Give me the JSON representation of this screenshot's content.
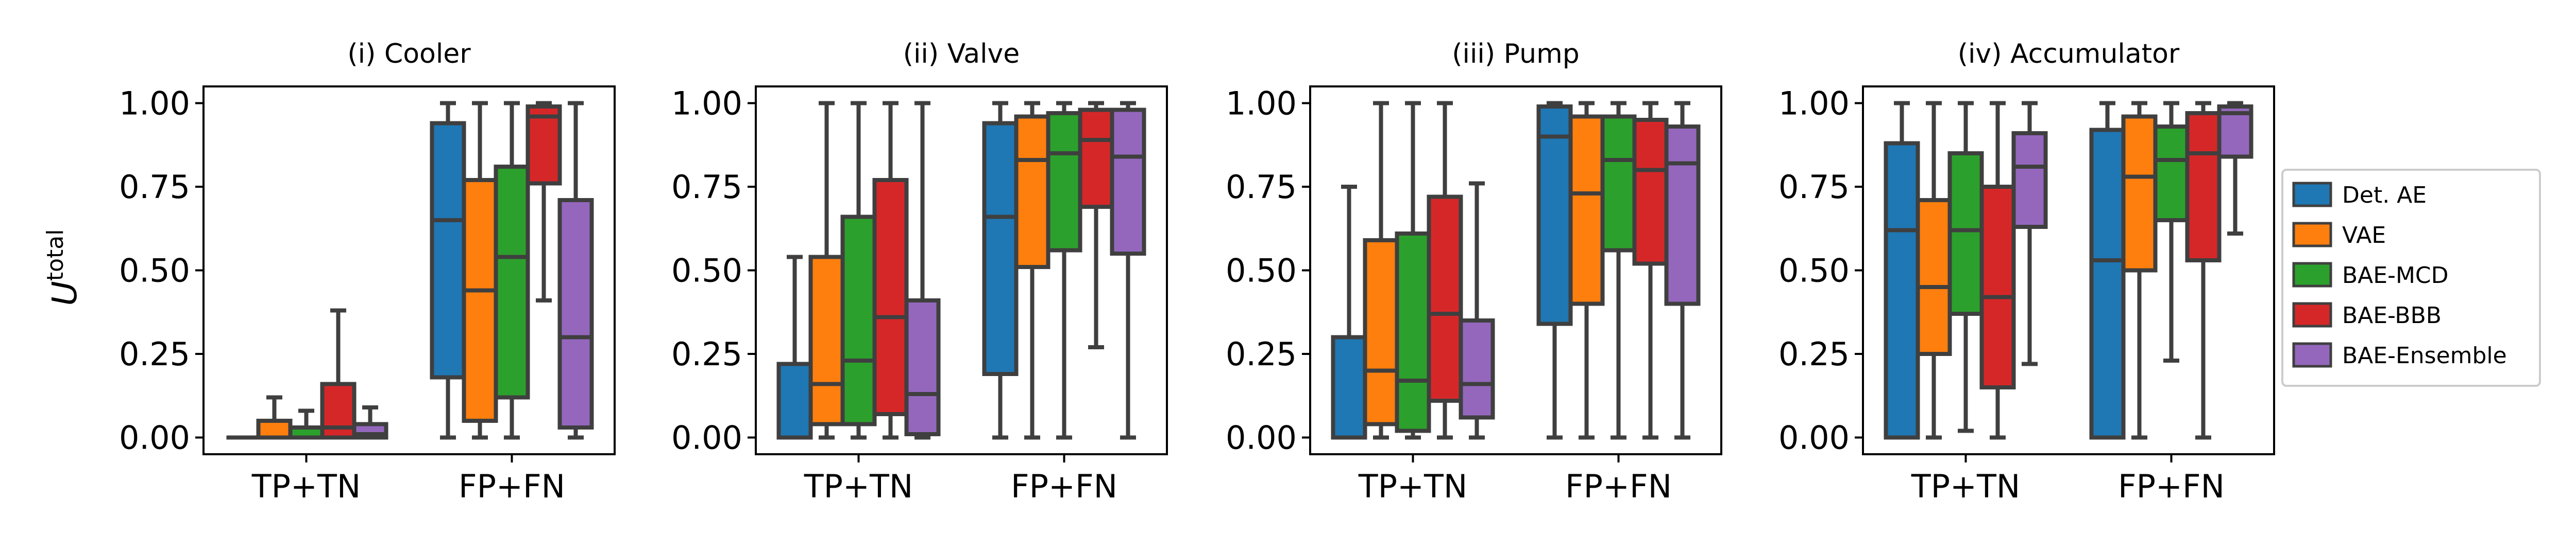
{
  "chart_data": {
    "type": "box",
    "ylabel_main": "U",
    "ylabel_sup": "total",
    "ylim": [
      -0.05,
      1.05
    ],
    "yticks": [
      0.0,
      0.25,
      0.5,
      0.75,
      1.0
    ],
    "ytick_labels": [
      "0.00",
      "0.25",
      "0.50",
      "0.75",
      "1.00"
    ],
    "categories": [
      "TP+TN",
      "FP+FN"
    ],
    "series": [
      {
        "name": "Det. AE",
        "color": "#1f77b4"
      },
      {
        "name": "VAE",
        "color": "#ff7f0e"
      },
      {
        "name": "BAE-MCD",
        "color": "#2ca02c"
      },
      {
        "name": "BAE-BBB",
        "color": "#d62728"
      },
      {
        "name": "BAE-Ensemble",
        "color": "#9467bd"
      }
    ],
    "legend_position": "right",
    "panels": [
      {
        "title": "(i) Cooler",
        "boxes": [
          [
            {
              "min": 0.0,
              "q1": 0.0,
              "median": 0.0,
              "q3": 0.0,
              "max": 0.0
            },
            {
              "min": 0.0,
              "q1": 0.0,
              "median": 0.0,
              "q3": 0.05,
              "max": 0.12
            },
            {
              "min": 0.0,
              "q1": 0.0,
              "median": 0.0,
              "q3": 0.03,
              "max": 0.08
            },
            {
              "min": 0.0,
              "q1": 0.0,
              "median": 0.03,
              "q3": 0.16,
              "max": 0.38
            },
            {
              "min": 0.0,
              "q1": 0.0,
              "median": 0.01,
              "q3": 0.04,
              "max": 0.09
            }
          ],
          [
            {
              "min": 0.0,
              "q1": 0.18,
              "median": 0.65,
              "q3": 0.94,
              "max": 1.0
            },
            {
              "min": 0.0,
              "q1": 0.05,
              "median": 0.44,
              "q3": 0.77,
              "max": 1.0
            },
            {
              "min": 0.0,
              "q1": 0.12,
              "median": 0.54,
              "q3": 0.81,
              "max": 1.0
            },
            {
              "min": 0.41,
              "q1": 0.76,
              "median": 0.96,
              "q3": 0.99,
              "max": 1.0
            },
            {
              "min": 0.0,
              "q1": 0.03,
              "median": 0.3,
              "q3": 0.71,
              "max": 1.0
            }
          ]
        ]
      },
      {
        "title": "(ii) Valve",
        "boxes": [
          [
            {
              "min": 0.0,
              "q1": 0.0,
              "median": 0.0,
              "q3": 0.22,
              "max": 0.54
            },
            {
              "min": 0.0,
              "q1": 0.04,
              "median": 0.16,
              "q3": 0.54,
              "max": 1.0
            },
            {
              "min": 0.0,
              "q1": 0.04,
              "median": 0.23,
              "q3": 0.66,
              "max": 1.0
            },
            {
              "min": 0.0,
              "q1": 0.07,
              "median": 0.36,
              "q3": 0.77,
              "max": 1.0
            },
            {
              "min": 0.0,
              "q1": 0.01,
              "median": 0.13,
              "q3": 0.41,
              "max": 1.0
            }
          ],
          [
            {
              "min": 0.0,
              "q1": 0.19,
              "median": 0.66,
              "q3": 0.94,
              "max": 1.0
            },
            {
              "min": 0.0,
              "q1": 0.51,
              "median": 0.83,
              "q3": 0.96,
              "max": 1.0
            },
            {
              "min": 0.0,
              "q1": 0.56,
              "median": 0.85,
              "q3": 0.97,
              "max": 1.0
            },
            {
              "min": 0.27,
              "q1": 0.69,
              "median": 0.89,
              "q3": 0.98,
              "max": 1.0
            },
            {
              "min": 0.0,
              "q1": 0.55,
              "median": 0.84,
              "q3": 0.98,
              "max": 1.0
            }
          ]
        ]
      },
      {
        "title": "(iii) Pump",
        "boxes": [
          [
            {
              "min": 0.0,
              "q1": 0.0,
              "median": 0.0,
              "q3": 0.3,
              "max": 0.75
            },
            {
              "min": 0.0,
              "q1": 0.04,
              "median": 0.2,
              "q3": 0.59,
              "max": 1.0
            },
            {
              "min": 0.0,
              "q1": 0.02,
              "median": 0.17,
              "q3": 0.61,
              "max": 1.0
            },
            {
              "min": 0.0,
              "q1": 0.11,
              "median": 0.37,
              "q3": 0.72,
              "max": 1.0
            },
            {
              "min": 0.0,
              "q1": 0.06,
              "median": 0.16,
              "q3": 0.35,
              "max": 0.76
            }
          ],
          [
            {
              "min": 0.0,
              "q1": 0.34,
              "median": 0.9,
              "q3": 0.99,
              "max": 1.0
            },
            {
              "min": 0.0,
              "q1": 0.4,
              "median": 0.73,
              "q3": 0.96,
              "max": 1.0
            },
            {
              "min": 0.0,
              "q1": 0.56,
              "median": 0.83,
              "q3": 0.96,
              "max": 1.0
            },
            {
              "min": 0.0,
              "q1": 0.52,
              "median": 0.8,
              "q3": 0.95,
              "max": 1.0
            },
            {
              "min": 0.0,
              "q1": 0.4,
              "median": 0.82,
              "q3": 0.93,
              "max": 1.0
            }
          ]
        ]
      },
      {
        "title": "(iv) Accumulator",
        "boxes": [
          [
            {
              "min": 0.0,
              "q1": 0.0,
              "median": 0.62,
              "q3": 0.88,
              "max": 1.0
            },
            {
              "min": 0.0,
              "q1": 0.25,
              "median": 0.45,
              "q3": 0.71,
              "max": 1.0
            },
            {
              "min": 0.02,
              "q1": 0.37,
              "median": 0.62,
              "q3": 0.85,
              "max": 1.0
            },
            {
              "min": 0.0,
              "q1": 0.15,
              "median": 0.42,
              "q3": 0.75,
              "max": 1.0
            },
            {
              "min": 0.22,
              "q1": 0.63,
              "median": 0.81,
              "q3": 0.91,
              "max": 1.0
            }
          ],
          [
            {
              "min": 0.0,
              "q1": 0.0,
              "median": 0.53,
              "q3": 0.92,
              "max": 1.0
            },
            {
              "min": 0.0,
              "q1": 0.5,
              "median": 0.78,
              "q3": 0.96,
              "max": 1.0
            },
            {
              "min": 0.23,
              "q1": 0.65,
              "median": 0.83,
              "q3": 0.93,
              "max": 1.0
            },
            {
              "min": 0.0,
              "q1": 0.53,
              "median": 0.85,
              "q3": 0.97,
              "max": 1.0
            },
            {
              "min": 0.61,
              "q1": 0.84,
              "median": 0.97,
              "q3": 0.99,
              "max": 1.0
            }
          ]
        ]
      }
    ]
  }
}
